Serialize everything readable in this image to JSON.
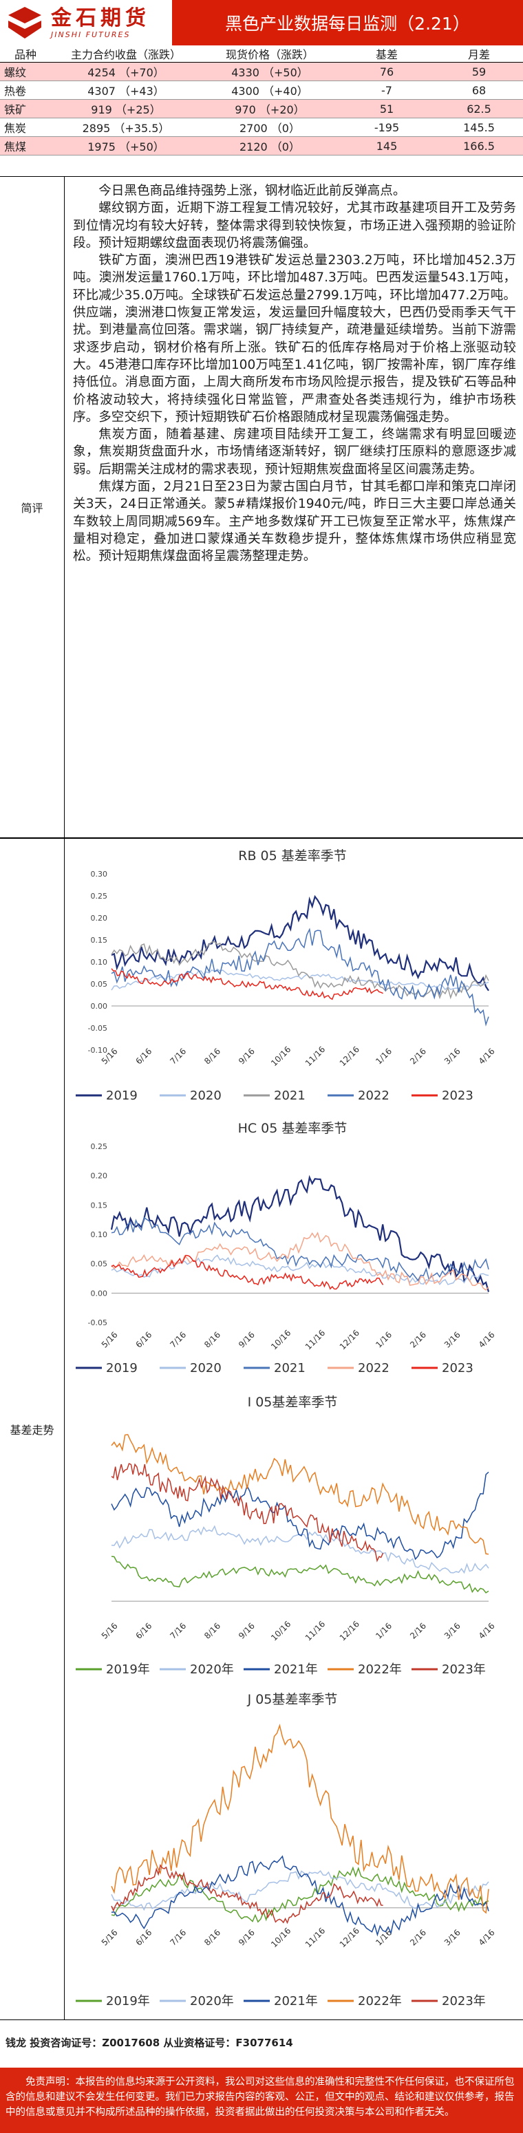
{
  "header": {
    "logo_cn": "金石期货",
    "logo_en": "JINSHI FUTURES",
    "title": "黑色产业数据每日监测（2.21）"
  },
  "price_table": {
    "headers": [
      "品种",
      "主力合约收盘（涨跌）",
      "现货价格（涨跌）",
      "基差",
      "月差"
    ],
    "rows": [
      {
        "name": "螺纹",
        "close": "4254 （+70）",
        "spot": "4330 （+50）",
        "basis": "76",
        "spread": "59"
      },
      {
        "name": "热卷",
        "close": "4307 （+43）",
        "spot": "4300 （+40）",
        "basis": "-7",
        "spread": "68"
      },
      {
        "name": "铁矿",
        "close": "919 （+25）",
        "spot": "970 （+20）",
        "basis": "51",
        "spread": "62.5"
      },
      {
        "name": "焦炭",
        "close": "2895 （+35.5）",
        "spot": "2700 （0）",
        "basis": "-195",
        "spread": "145.5"
      },
      {
        "name": "焦煤",
        "close": "1975 （+50）",
        "spot": "2120 （0）",
        "basis": "145",
        "spread": "166.5"
      }
    ]
  },
  "comment": {
    "label": "简评",
    "paragraphs": [
      "今日黑色商品维持强势上涨，钢材临近此前反弹高点。",
      "螺纹钢方面，近期下游工程复工情况较好，尤其市政基建项目开工及劳务到位情况均有较大好转，整体需求得到较快恢复，市场正进入强预期的验证阶段。预计短期螺纹盘面表现仍将震荡偏强。",
      "铁矿方面，澳洲巴西19港铁矿发运总量2303.2万吨，环比增加452.3万吨。澳洲发运量1760.1万吨，环比增加487.3万吨。巴西发运量543.1万吨，环比减少35.0万吨。全球铁矿石发运总量2799.1万吨，环比增加477.2万吨。供应端，澳洲港口恢复正常发运，发运量回升幅度较大，巴西仍受雨季天气干扰。到港量高位回落。需求端，钢厂持续复产，疏港量延续增势。当前下游需求逐步启动，钢材价格有所上涨。铁矿石的低库存格局对于价格上涨驱动较大。45港港口库存环比增加100万吨至1.41亿吨，钢厂按需补库，钢厂库存维持低位。消息面方面，上周大商所发布市场风险提示报告，提及铁矿石等品种价格波动较大，将持续强化日常监管，严肃查处各类违规行为，维护市场秩序。多空交织下，预计短期铁矿石价格跟随成材呈现震荡偏强走势。",
      "焦炭方面，随着基建、房建项目陆续开工复工，终端需求有明显回暖迹象，焦炭期货盘面升水，市场情绪逐渐转好，钢厂继续打压原料的意愿逐步减弱。后期需关注成材的需求表现，预计短期焦炭盘面将呈区间震荡走势。",
      "焦煤方面，2月21日至23日为蒙古国白月节，甘其毛都口岸和策克口岸闭关3天，24日正常通关。蒙5#精煤报价1940元/吨，昨日三大主要口岸总通关车数较上周同期减569车。主产地多数煤矿开工已恢复至正常水平，炼焦煤产量相对稳定，叠加进口蒙煤通关车数稳步提升，整体炼焦煤市场供应稍显宽松。预计短期焦煤盘面将呈震荡整理走势。"
    ]
  },
  "basis_section_label": "基差走势",
  "x_tick_labels": [
    "5/16",
    "6/16",
    "7/16",
    "8/16",
    "9/16",
    "10/16",
    "11/16",
    "12/16",
    "1/16",
    "2/16",
    "3/16",
    "4/16"
  ],
  "charts": [
    {
      "title": "RB 05 基差率季节",
      "legend_style": "plain",
      "chart_data": {
        "type": "line",
        "title": "RB 05 基差率季节",
        "x": [
          "5/16",
          "6/16",
          "7/16",
          "8/16",
          "9/16",
          "10/16",
          "11/16",
          "12/16",
          "1/16",
          "2/16",
          "3/16",
          "4/16"
        ],
        "ylim": [
          -0.1,
          0.3
        ],
        "y_ticks": [
          "0.30",
          "0.25",
          "0.20",
          "0.15",
          "0.10",
          "0.05",
          "0.00",
          "-0.05",
          "-0.10"
        ],
        "series": [
          {
            "name": "2019",
            "color": "#1f2f7a",
            "values": [
              0.1,
              0.12,
              0.11,
              0.14,
              0.15,
              0.17,
              0.24,
              0.16,
              0.12,
              0.08,
              0.1,
              0.04
            ]
          },
          {
            "name": "2020",
            "color": "#a7c0e6",
            "values": [
              0.04,
              0.06,
              0.07,
              0.08,
              0.07,
              0.06,
              0.07,
              0.06,
              0.05,
              0.05,
              0.04,
              0.05
            ]
          },
          {
            "name": "2021",
            "color": "#9a9a9a",
            "values": [
              0.12,
              0.13,
              0.1,
              0.14,
              0.11,
              0.1,
              0.05,
              0.06,
              0.04,
              0.03,
              0.03,
              0.06
            ]
          },
          {
            "name": "2022",
            "color": "#4a74b8",
            "values": [
              0.07,
              0.08,
              0.06,
              0.09,
              0.1,
              0.14,
              0.16,
              0.1,
              0.05,
              0.02,
              0.06,
              -0.04
            ]
          },
          {
            "name": "2023",
            "color": "#e8251b",
            "values": [
              0.08,
              0.06,
              0.05,
              0.07,
              0.06,
              0.05,
              0.05,
              0.04,
              0.03,
              0.02,
              0.04,
              0.03
            ]
          }
        ]
      }
    },
    {
      "title": "HC 05 基差率季节",
      "legend_style": "plain",
      "chart_data": {
        "type": "line",
        "title": "HC 05 基差率季节",
        "x": [
          "5/16",
          "6/16",
          "7/16",
          "8/16",
          "9/16",
          "10/16",
          "11/16",
          "12/16",
          "1/16",
          "2/16",
          "3/16",
          "4/16"
        ],
        "ylim": [
          -0.05,
          0.25
        ],
        "y_ticks": [
          "0.25",
          "0.20",
          "0.15",
          "0.10",
          "0.05",
          "0.00",
          "-0.05"
        ],
        "series": [
          {
            "name": "2019",
            "color": "#1f2f7a",
            "values": [
              0.12,
              0.13,
              0.11,
              0.14,
              0.14,
              0.16,
              0.2,
              0.13,
              0.1,
              0.06,
              0.04,
              0.02
            ]
          },
          {
            "name": "2020",
            "color": "#a7c0e6",
            "values": [
              0.04,
              0.03,
              0.05,
              0.06,
              0.05,
              0.04,
              0.05,
              0.04,
              0.03,
              0.02,
              0.02,
              0.03
            ]
          },
          {
            "name": "2021",
            "color": "#4a74b8",
            "values": [
              0.1,
              0.12,
              0.09,
              0.11,
              0.1,
              0.06,
              0.05,
              0.06,
              0.05,
              0.03,
              0.04,
              0.05
            ]
          },
          {
            "name": "2022",
            "color": "#f4a58a",
            "values": [
              0.04,
              0.06,
              0.05,
              0.08,
              0.07,
              0.06,
              0.1,
              0.07,
              0.03,
              0.02,
              0.03,
              0.01
            ]
          },
          {
            "name": "2023",
            "color": "#e8251b",
            "values": [
              0.05,
              0.03,
              0.04,
              0.06,
              0.04,
              0.03,
              0.02,
              0.03,
              0.02,
              0.01,
              0.02,
              0.02
            ]
          }
        ]
      }
    },
    {
      "title": "I 05基差率季节",
      "legend_style": "year",
      "chart_data": {
        "type": "line",
        "title": "I 05基差率季节",
        "x": [
          "5/16",
          "6/16",
          "7/16",
          "8/16",
          "9/16",
          "10/16",
          "11/16",
          "12/16",
          "1/16",
          "2/16",
          "3/16",
          "4/16"
        ],
        "ylim": [
          -0.05,
          0.4
        ],
        "series": [
          {
            "name": "2019年",
            "color": "#5aa02c",
            "values": [
              0.1,
              0.05,
              0.04,
              0.06,
              0.07,
              0.06,
              0.08,
              0.05,
              0.04,
              0.06,
              0.04,
              0.02
            ]
          },
          {
            "name": "2020年",
            "color": "#a7c0e6",
            "values": [
              0.12,
              0.15,
              0.14,
              0.16,
              0.13,
              0.14,
              0.15,
              0.12,
              0.1,
              0.08,
              0.07,
              0.08
            ]
          },
          {
            "name": "2021年",
            "color": "#1f4ea0",
            "values": [
              0.2,
              0.25,
              0.18,
              0.22,
              0.24,
              0.2,
              0.12,
              0.16,
              0.14,
              0.1,
              0.12,
              0.28
            ]
          },
          {
            "name": "2022年",
            "color": "#e67e22",
            "values": [
              0.36,
              0.33,
              0.28,
              0.25,
              0.27,
              0.3,
              0.26,
              0.22,
              0.24,
              0.18,
              0.16,
              0.12
            ]
          },
          {
            "name": "2023年",
            "color": "#c0392b",
            "values": [
              0.28,
              0.3,
              0.26,
              0.24,
              0.26,
              0.22,
              0.18,
              0.2,
              0.18,
              0.14,
              0.13,
              0.1
            ]
          }
        ]
      }
    },
    {
      "title": "J 05基差率季节",
      "legend_style": "year",
      "chart_data": {
        "type": "line",
        "title": "J 05基差率季节",
        "x": [
          "5/16",
          "6/16",
          "7/16",
          "8/16",
          "9/16",
          "10/16",
          "11/16",
          "12/16",
          "1/16",
          "2/16",
          "3/16",
          "4/16"
        ],
        "ylim": [
          -0.1,
          0.4
        ],
        "series": [
          {
            "name": "2019年",
            "color": "#5aa02c",
            "values": [
              -0.02,
              0.04,
              0.06,
              0.02,
              -0.03,
              0.0,
              0.04,
              0.08,
              0.06,
              0.03,
              0.0,
              0.02
            ]
          },
          {
            "name": "2020年",
            "color": "#a7c0e6",
            "values": [
              0.02,
              0.0,
              0.03,
              0.05,
              0.02,
              0.06,
              0.08,
              0.05,
              0.04,
              0.0,
              0.02,
              0.05
            ]
          },
          {
            "name": "2021年",
            "color": "#1f4ea0",
            "values": [
              0.0,
              -0.03,
              0.02,
              0.05,
              0.08,
              0.1,
              0.04,
              -0.02,
              -0.05,
              0.0,
              0.04,
              0.0
            ]
          },
          {
            "name": "2022年",
            "color": "#e67e22",
            "values": [
              0.05,
              0.08,
              0.12,
              0.2,
              0.3,
              0.38,
              0.25,
              0.12,
              0.1,
              0.06,
              0.04,
              0.02
            ]
          },
          {
            "name": "2023年",
            "color": "#c0392b",
            "values": [
              0.0,
              0.04,
              0.08,
              0.06,
              0.04,
              0.02,
              0.0,
              -0.03,
              0.01,
              0.04,
              0.02,
              0.01
            ]
          }
        ]
      }
    }
  ],
  "contact": "钱龙 投资咨询证号：Z0017608 从业资格证号：F3077614",
  "disclaimer": "免责声明：本报告的信息均来源于公开资料，我公司对这些信息的准确性和完整性不作任何保证，也不保证所包含的信息和建议不会发生任何变更。我们已力求报告内容的客观、公正，但文中的观点、结论和建议仅供参考，报告中的信息或意见并不构成所述品种的操作依据，投资者据此做出的任何投资决策与本公司和作者无关。"
}
